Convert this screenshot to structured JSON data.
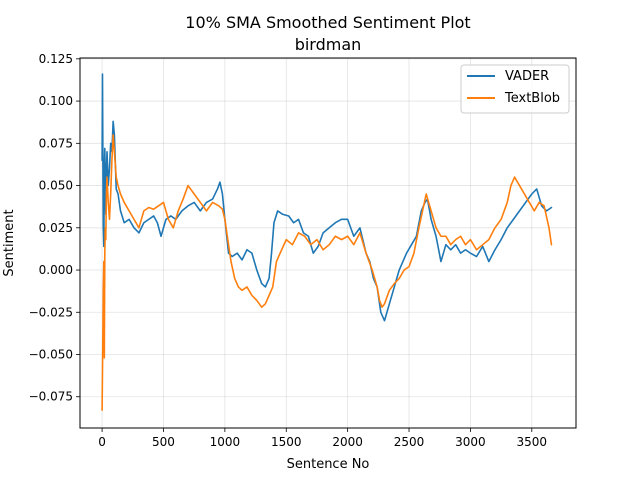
{
  "chart_data": {
    "type": "line",
    "title": "10% SMA Smoothed Sentiment Plot",
    "subtitle": "birdman",
    "xlabel": "Sentence No",
    "ylabel": "Sentiment",
    "xlim": [
      -180,
      3860
    ],
    "ylim": [
      -0.0935,
      0.1255
    ],
    "xticks": [
      0,
      500,
      1000,
      1500,
      2000,
      2500,
      3000,
      3500
    ],
    "xtick_labels": [
      "0",
      "500",
      "1000",
      "1500",
      "2000",
      "2500",
      "3000",
      "3500"
    ],
    "yticks": [
      -0.075,
      -0.05,
      -0.025,
      0.0,
      0.025,
      0.05,
      0.075,
      0.1,
      0.125
    ],
    "ytick_labels": [
      "−0.075",
      "−0.050",
      "−0.025",
      "0.000",
      "0.025",
      "0.050",
      "0.075",
      "0.100",
      "0.125"
    ],
    "grid": true,
    "legend_position": "top-right",
    "series": [
      {
        "name": "VADER",
        "color": "#1f77b4",
        "x": [
          0,
          3,
          6,
          10,
          14,
          18,
          22,
          26,
          30,
          35,
          40,
          50,
          60,
          70,
          80,
          90,
          100,
          115,
          130,
          150,
          180,
          220,
          260,
          300,
          340,
          380,
          420,
          450,
          480,
          520,
          560,
          600,
          650,
          700,
          750,
          800,
          850,
          900,
          940,
          960,
          980,
          1000,
          1030,
          1060,
          1100,
          1140,
          1180,
          1220,
          1260,
          1300,
          1330,
          1360,
          1380,
          1400,
          1430,
          1470,
          1520,
          1560,
          1600,
          1640,
          1680,
          1720,
          1760,
          1800,
          1850,
          1900,
          1950,
          2000,
          2050,
          2100,
          2150,
          2180,
          2210,
          2240,
          2270,
          2300,
          2340,
          2380,
          2420,
          2450,
          2480,
          2520,
          2560,
          2600,
          2630,
          2650,
          2680,
          2720,
          2760,
          2800,
          2840,
          2880,
          2920,
          2960,
          3000,
          3050,
          3100,
          3150,
          3200,
          3250,
          3300,
          3350,
          3400,
          3450,
          3500,
          3540,
          3580,
          3620,
          3660
        ],
        "y": [
          0.065,
          0.116,
          0.072,
          0.025,
          0.014,
          0.06,
          0.072,
          0.045,
          0.033,
          0.06,
          0.07,
          0.05,
          0.06,
          0.075,
          0.07,
          0.088,
          0.08,
          0.048,
          0.045,
          0.035,
          0.028,
          0.03,
          0.025,
          0.022,
          0.028,
          0.03,
          0.032,
          0.028,
          0.02,
          0.03,
          0.032,
          0.03,
          0.035,
          0.038,
          0.04,
          0.035,
          0.04,
          0.042,
          0.048,
          0.052,
          0.045,
          0.03,
          0.01,
          0.008,
          0.01,
          0.006,
          0.012,
          0.01,
          0.0,
          -0.008,
          -0.01,
          -0.005,
          0.01,
          0.028,
          0.035,
          0.033,
          0.032,
          0.028,
          0.03,
          0.022,
          0.02,
          0.01,
          0.014,
          0.022,
          0.025,
          0.028,
          0.03,
          0.03,
          0.02,
          0.025,
          0.01,
          0.005,
          -0.005,
          -0.01,
          -0.025,
          -0.03,
          -0.02,
          -0.01,
          0.0,
          0.005,
          0.01,
          0.015,
          0.02,
          0.035,
          0.04,
          0.042,
          0.03,
          0.02,
          0.005,
          0.015,
          0.012,
          0.015,
          0.01,
          0.012,
          0.01,
          0.008,
          0.014,
          0.005,
          0.012,
          0.018,
          0.025,
          0.03,
          0.035,
          0.04,
          0.045,
          0.048,
          0.038,
          0.035,
          0.037
        ]
      },
      {
        "name": "TextBlob",
        "color": "#ff7f0e",
        "x": [
          0,
          3,
          6,
          10,
          14,
          18,
          22,
          26,
          30,
          35,
          40,
          50,
          60,
          70,
          80,
          90,
          100,
          115,
          130,
          150,
          180,
          220,
          260,
          300,
          340,
          380,
          420,
          460,
          500,
          540,
          580,
          620,
          660,
          700,
          750,
          800,
          850,
          900,
          950,
          980,
          1000,
          1020,
          1050,
          1080,
          1110,
          1140,
          1180,
          1220,
          1260,
          1300,
          1330,
          1360,
          1390,
          1420,
          1450,
          1500,
          1550,
          1600,
          1650,
          1700,
          1750,
          1800,
          1850,
          1900,
          1950,
          2000,
          2050,
          2100,
          2150,
          2200,
          2240,
          2260,
          2280,
          2300,
          2340,
          2380,
          2420,
          2460,
          2500,
          2540,
          2580,
          2610,
          2640,
          2680,
          2720,
          2760,
          2800,
          2840,
          2880,
          2920,
          2960,
          3000,
          3050,
          3100,
          3150,
          3200,
          3250,
          3300,
          3330,
          3360,
          3400,
          3440,
          3480,
          3520,
          3560,
          3600,
          3640,
          3660
        ],
        "y": [
          -0.083,
          -0.06,
          -0.04,
          -0.01,
          0.005,
          -0.052,
          0.01,
          0.025,
          0.018,
          0.045,
          0.055,
          0.04,
          0.03,
          0.045,
          0.065,
          0.08,
          0.07,
          0.055,
          0.05,
          0.045,
          0.04,
          0.035,
          0.03,
          0.025,
          0.035,
          0.037,
          0.036,
          0.038,
          0.04,
          0.03,
          0.025,
          0.035,
          0.042,
          0.05,
          0.045,
          0.04,
          0.035,
          0.04,
          0.038,
          0.036,
          0.03,
          0.02,
          0.005,
          -0.005,
          -0.01,
          -0.012,
          -0.01,
          -0.015,
          -0.018,
          -0.022,
          -0.02,
          -0.015,
          -0.01,
          0.005,
          0.01,
          0.018,
          0.015,
          0.022,
          0.02,
          0.015,
          0.018,
          0.012,
          0.015,
          0.02,
          0.018,
          0.02,
          0.015,
          0.022,
          0.01,
          0.0,
          -0.01,
          -0.018,
          -0.022,
          -0.02,
          -0.012,
          -0.008,
          -0.005,
          0.0,
          0.002,
          0.01,
          0.025,
          0.035,
          0.045,
          0.035,
          0.025,
          0.02,
          0.02,
          0.015,
          0.018,
          0.02,
          0.015,
          0.018,
          0.012,
          0.015,
          0.018,
          0.025,
          0.03,
          0.04,
          0.05,
          0.055,
          0.05,
          0.045,
          0.04,
          0.035,
          0.04,
          0.038,
          0.025,
          0.015
        ]
      }
    ]
  }
}
